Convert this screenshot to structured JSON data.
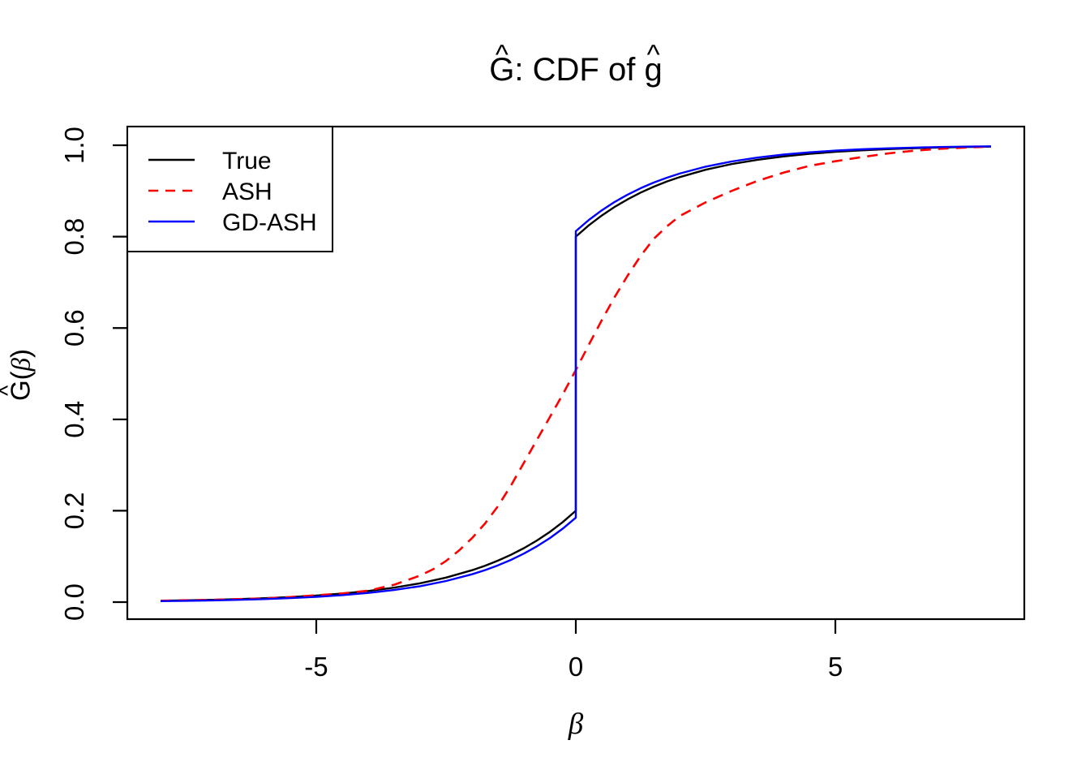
{
  "figure": {
    "background": "#FFFFFF",
    "plot_border_color": "#000000"
  },
  "chart_data": {
    "type": "line",
    "title": "Ĝ: CDF of ĝ",
    "title_parts": [
      {
        "text": "G",
        "hat": true
      },
      {
        "text": ": CDF of ",
        "hat": false
      },
      {
        "text": "g",
        "hat": true
      }
    ],
    "xlabel": "β",
    "xlabel_parts": [
      {
        "text": "β",
        "hat": false,
        "greek": true
      }
    ],
    "ylabel": "Ĝ(β)",
    "ylabel_parts": [
      {
        "text": "G",
        "hat": true
      },
      {
        "text": "(",
        "hat": false
      },
      {
        "text": "β",
        "hat": false,
        "greek": true
      },
      {
        "text": ")",
        "hat": false
      }
    ],
    "xlim": [
      -8,
      8
    ],
    "ylim": [
      0,
      1
    ],
    "x_range": [
      -8.64,
      8.64
    ],
    "y_range": [
      -0.0373,
      1.0409
    ],
    "x_ticks": [
      -5,
      0,
      5
    ],
    "x_tick_labels": [
      "-5",
      "0",
      "5"
    ],
    "y_ticks": [
      0,
      0.2,
      0.4,
      0.6,
      0.8,
      1
    ],
    "y_tick_labels": [
      "0.0",
      "0.2",
      "0.4",
      "0.6",
      "0.8",
      "1.0"
    ],
    "grid": false,
    "legend": {
      "position": "topleft",
      "items": [
        {
          "label": "True",
          "color": "#000000",
          "linestyle": "solid"
        },
        {
          "label": "ASH",
          "color": "#FF0000",
          "linestyle": "dashed"
        },
        {
          "label": "GD-ASH",
          "color": "#0000FF",
          "linestyle": "solid"
        }
      ]
    },
    "series": [
      {
        "name": "True",
        "color": "#000000",
        "linestyle": "solid",
        "points": [
          [
            -8,
            0.003
          ],
          [
            -7.5,
            0.0039
          ],
          [
            -7,
            0.005
          ],
          [
            -6.5,
            0.0065
          ],
          [
            -6,
            0.0085
          ],
          [
            -5.5,
            0.0111
          ],
          [
            -5,
            0.0144
          ],
          [
            -4.5,
            0.0187
          ],
          [
            -4,
            0.0244
          ],
          [
            -3.5,
            0.0317
          ],
          [
            -3,
            0.0412
          ],
          [
            -2.5,
            0.0536
          ],
          [
            -2,
            0.0698
          ],
          [
            -1.75,
            0.0796
          ],
          [
            -1.5,
            0.0908
          ],
          [
            -1.25,
            0.1036
          ],
          [
            -1,
            0.1182
          ],
          [
            -0.75,
            0.1348
          ],
          [
            -0.5,
            0.1537
          ],
          [
            -0.25,
            0.1753
          ],
          [
            0,
            0.2
          ],
          [
            0,
            0.8
          ],
          [
            0.25,
            0.8247
          ],
          [
            0.5,
            0.8463
          ],
          [
            0.75,
            0.8652
          ],
          [
            1,
            0.8818
          ],
          [
            1.25,
            0.8964
          ],
          [
            1.5,
            0.9092
          ],
          [
            1.75,
            0.9204
          ],
          [
            2,
            0.9302
          ],
          [
            2.5,
            0.9464
          ],
          [
            3,
            0.9588
          ],
          [
            3.5,
            0.9683
          ],
          [
            4,
            0.9756
          ],
          [
            4.5,
            0.9813
          ],
          [
            5,
            0.9856
          ],
          [
            5.5,
            0.9889
          ],
          [
            6,
            0.9915
          ],
          [
            6.5,
            0.9935
          ],
          [
            7,
            0.995
          ],
          [
            7.5,
            0.9961
          ],
          [
            8,
            0.997
          ]
        ]
      },
      {
        "name": "ASH",
        "color": "#FF0000",
        "linestyle": "dashed",
        "points": [
          [
            -8,
            0.003
          ],
          [
            -7.5,
            0.004
          ],
          [
            -7,
            0.005
          ],
          [
            -6.5,
            0.0065
          ],
          [
            -6,
            0.008
          ],
          [
            -5.5,
            0.011
          ],
          [
            -5,
            0.015
          ],
          [
            -4.5,
            0.019
          ],
          [
            -4,
            0.025
          ],
          [
            -3.5,
            0.038
          ],
          [
            -3,
            0.058
          ],
          [
            -2.75,
            0.072
          ],
          [
            -2.5,
            0.09
          ],
          [
            -2.25,
            0.113
          ],
          [
            -2,
            0.14
          ],
          [
            -1.75,
            0.172
          ],
          [
            -1.5,
            0.21
          ],
          [
            -1.25,
            0.255
          ],
          [
            -1,
            0.305
          ],
          [
            -0.75,
            0.355
          ],
          [
            -0.5,
            0.405
          ],
          [
            -0.25,
            0.455
          ],
          [
            0,
            0.508
          ],
          [
            0.25,
            0.563
          ],
          [
            0.5,
            0.617
          ],
          [
            0.75,
            0.668
          ],
          [
            1,
            0.715
          ],
          [
            1.25,
            0.758
          ],
          [
            1.5,
            0.795
          ],
          [
            1.75,
            0.822
          ],
          [
            2,
            0.845
          ],
          [
            2.5,
            0.875
          ],
          [
            3,
            0.9
          ],
          [
            3.5,
            0.922
          ],
          [
            4,
            0.94
          ],
          [
            4.5,
            0.955
          ],
          [
            5,
            0.965
          ],
          [
            5.5,
            0.974
          ],
          [
            6,
            0.982
          ],
          [
            6.5,
            0.988
          ],
          [
            7,
            0.992
          ],
          [
            7.5,
            0.995
          ],
          [
            8,
            0.997
          ]
        ]
      },
      {
        "name": "GD-ASH",
        "color": "#0000FF",
        "linestyle": "solid",
        "points": [
          [
            -8,
            0.0022
          ],
          [
            -7.5,
            0.0029
          ],
          [
            -7,
            0.0038
          ],
          [
            -6.5,
            0.005
          ],
          [
            -6,
            0.0066
          ],
          [
            -5.5,
            0.0087
          ],
          [
            -5,
            0.0115
          ],
          [
            -4.5,
            0.0152
          ],
          [
            -4,
            0.02
          ],
          [
            -3.5,
            0.0265
          ],
          [
            -3,
            0.0349
          ],
          [
            -2.5,
            0.0461
          ],
          [
            -2,
            0.0609
          ],
          [
            -1.75,
            0.07
          ],
          [
            -1.5,
            0.0804
          ],
          [
            -1.25,
            0.0924
          ],
          [
            -1,
            0.1062
          ],
          [
            -0.75,
            0.122
          ],
          [
            -0.5,
            0.1401
          ],
          [
            -0.25,
            0.161
          ],
          [
            0,
            0.185
          ],
          [
            0,
            0.812
          ],
          [
            0.25,
            0.8364
          ],
          [
            0.5,
            0.8576
          ],
          [
            0.75,
            0.8761
          ],
          [
            1,
            0.8921
          ],
          [
            1.25,
            0.9061
          ],
          [
            1.5,
            0.9183
          ],
          [
            1.75,
            0.9288
          ],
          [
            2,
            0.9381
          ],
          [
            2.5,
            0.9531
          ],
          [
            3,
            0.9645
          ],
          [
            3.5,
            0.9731
          ],
          [
            4,
            0.9796
          ],
          [
            4.5,
            0.9846
          ],
          [
            5,
            0.9883
          ],
          [
            5.5,
            0.9911
          ],
          [
            6,
            0.9933
          ],
          [
            6.5,
            0.9949
          ],
          [
            7,
            0.9962
          ],
          [
            7.5,
            0.9971
          ],
          [
            8,
            0.9978
          ]
        ]
      }
    ]
  }
}
